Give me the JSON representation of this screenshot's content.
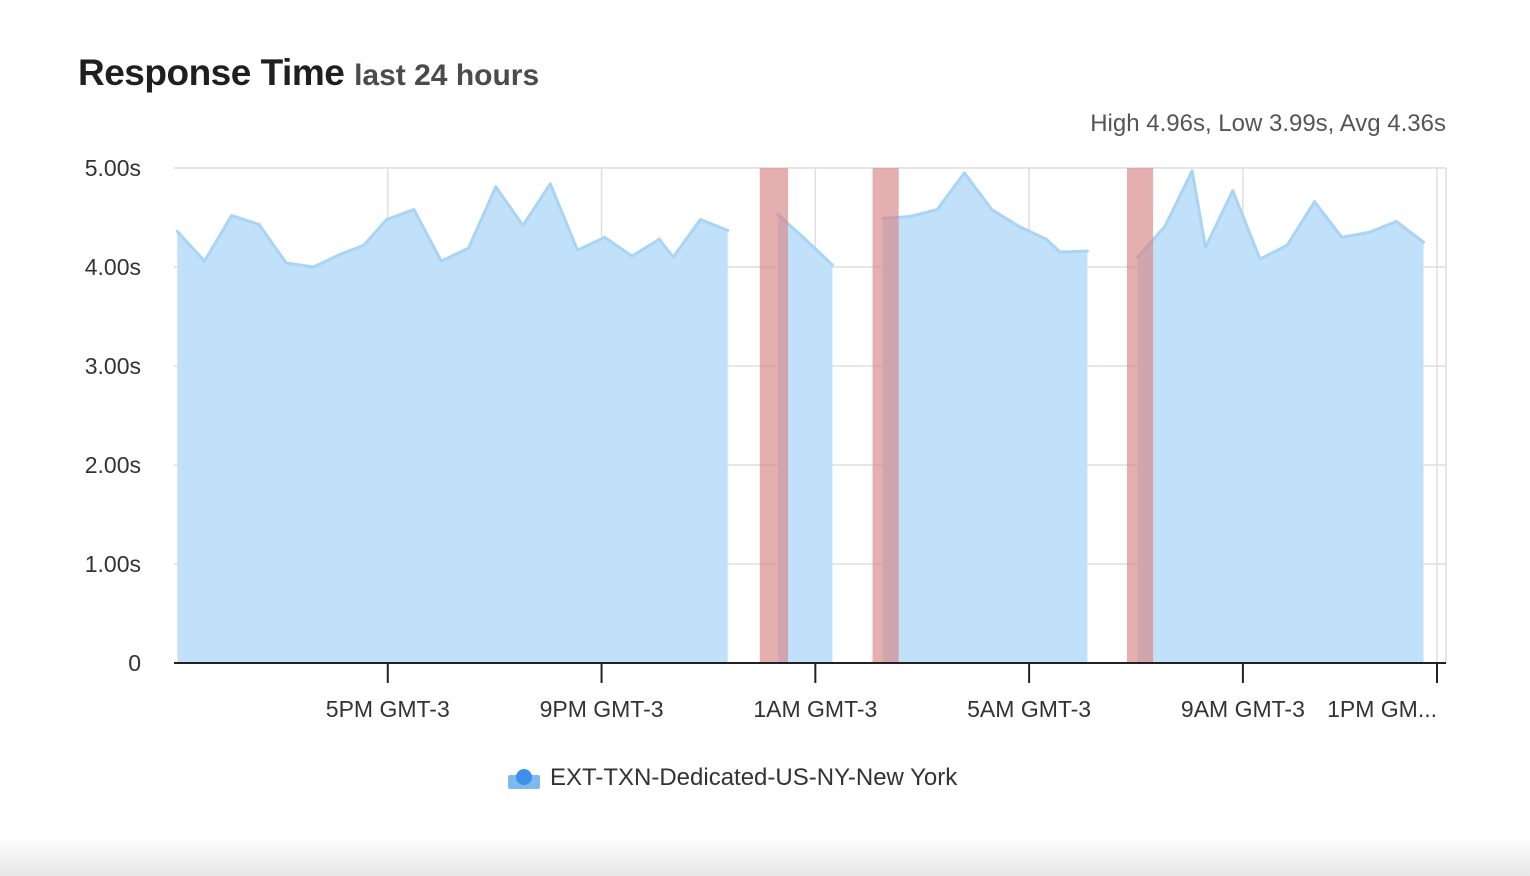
{
  "header": {
    "title": "Response Time",
    "subtitle": "last 24 hours",
    "summary": "High 4.96s, Low 3.99s, Avg 4.36s"
  },
  "legend": {
    "label": "EXT-TXN-Dedicated-US-NY-New York",
    "icon": "series-marker-icon"
  },
  "colors": {
    "area_fill": "#c1e1fa",
    "area_line": "#a9d4f6",
    "outage": "#d98484",
    "grid": "#dedede",
    "axis": "#222222"
  },
  "chart_data": {
    "type": "area",
    "title": "Response Time",
    "unit": "s",
    "ylim": [
      0,
      5
    ],
    "yticks": [
      0,
      1,
      2,
      3,
      4,
      5
    ],
    "ytick_labels": [
      "0",
      "1.00s",
      "2.00s",
      "3.00s",
      "4.00s",
      "5.00s"
    ],
    "xlim_hours": [
      0,
      23.8
    ],
    "xticks_hours": [
      4,
      8,
      12,
      16,
      20,
      24
    ],
    "xtick_labels": [
      "5PM GMT-3",
      "9PM GMT-3",
      "1AM GMT-3",
      "5AM GMT-3",
      "9AM GMT-3",
      "1PM GM..."
    ],
    "grid": true,
    "legend_position": "bottom-center",
    "series": [
      {
        "name": "EXT-TXN-Dedicated-US-NY-New York",
        "segments": [
          [
            [
              0.06,
              4.36
            ],
            [
              0.57,
              4.06
            ],
            [
              1.08,
              4.52
            ],
            [
              1.59,
              4.43
            ],
            [
              2.1,
              4.04
            ],
            [
              2.61,
              4.0
            ],
            [
              3.12,
              4.13
            ],
            [
              3.55,
              4.22
            ],
            [
              3.98,
              4.48
            ],
            [
              4.49,
              4.58
            ],
            [
              5.0,
              4.06
            ],
            [
              5.51,
              4.19
            ],
            [
              6.02,
              4.81
            ],
            [
              6.53,
              4.42
            ],
            [
              7.04,
              4.84
            ],
            [
              7.55,
              4.17
            ],
            [
              8.06,
              4.3
            ],
            [
              8.57,
              4.11
            ],
            [
              9.08,
              4.28
            ],
            [
              9.34,
              4.1
            ],
            [
              9.85,
              4.48
            ],
            [
              10.36,
              4.37
            ]
          ],
          [
            [
              11.3,
              4.53
            ],
            [
              11.81,
              4.28
            ],
            [
              12.32,
              4.02
            ]
          ],
          [
            [
              13.26,
              4.49
            ],
            [
              13.77,
              4.51
            ],
            [
              14.28,
              4.58
            ],
            [
              14.79,
              4.95
            ],
            [
              15.3,
              4.58
            ],
            [
              15.81,
              4.41
            ],
            [
              16.32,
              4.28
            ],
            [
              16.58,
              4.15
            ],
            [
              17.09,
              4.16
            ]
          ],
          [
            [
              18.03,
              4.1
            ],
            [
              18.54,
              4.41
            ],
            [
              19.05,
              4.97
            ],
            [
              19.3,
              4.2
            ],
            [
              19.81,
              4.77
            ],
            [
              20.32,
              4.08
            ],
            [
              20.83,
              4.22
            ],
            [
              21.34,
              4.66
            ],
            [
              21.85,
              4.3
            ],
            [
              22.36,
              4.35
            ],
            [
              22.87,
              4.46
            ],
            [
              23.38,
              4.25
            ]
          ]
        ]
      }
    ],
    "outages_hours": [
      [
        10.96,
        11.49
      ],
      [
        13.07,
        13.56
      ],
      [
        17.83,
        18.32
      ]
    ]
  }
}
